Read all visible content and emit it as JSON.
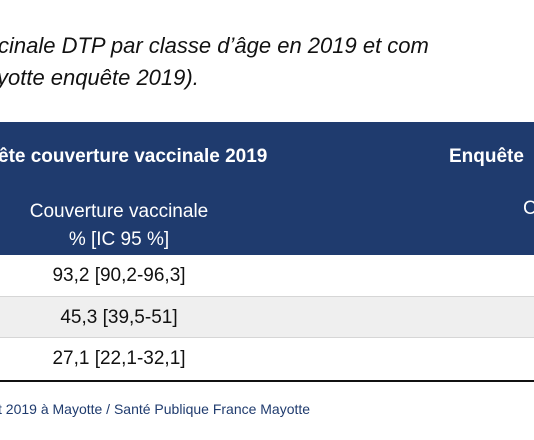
{
  "caption": {
    "line1": "cinale DTP par classe d’âge en 2019 et com",
    "line2": "yotte enquête 2019)."
  },
  "table": {
    "header_left": "ête couverture vaccinale 2019",
    "header_right": "Enquête",
    "subheader_left_line1": "Couverture vaccinale",
    "subheader_left_line2": "% [IC 95 %]",
    "subheader_right": "C",
    "rows": [
      {
        "value": "93,2 [90,2-96,3]"
      },
      {
        "value": "45,3 [39,5-51]"
      },
      {
        "value": "27,1 [22,1-32,1]"
      }
    ]
  },
  "source": "t 2019 à Mayotte / Santé Publique France Mayotte",
  "colors": {
    "header_bg": "#1f3b6e",
    "source_text": "#1f3b6e",
    "alt_row": "#efefef"
  }
}
